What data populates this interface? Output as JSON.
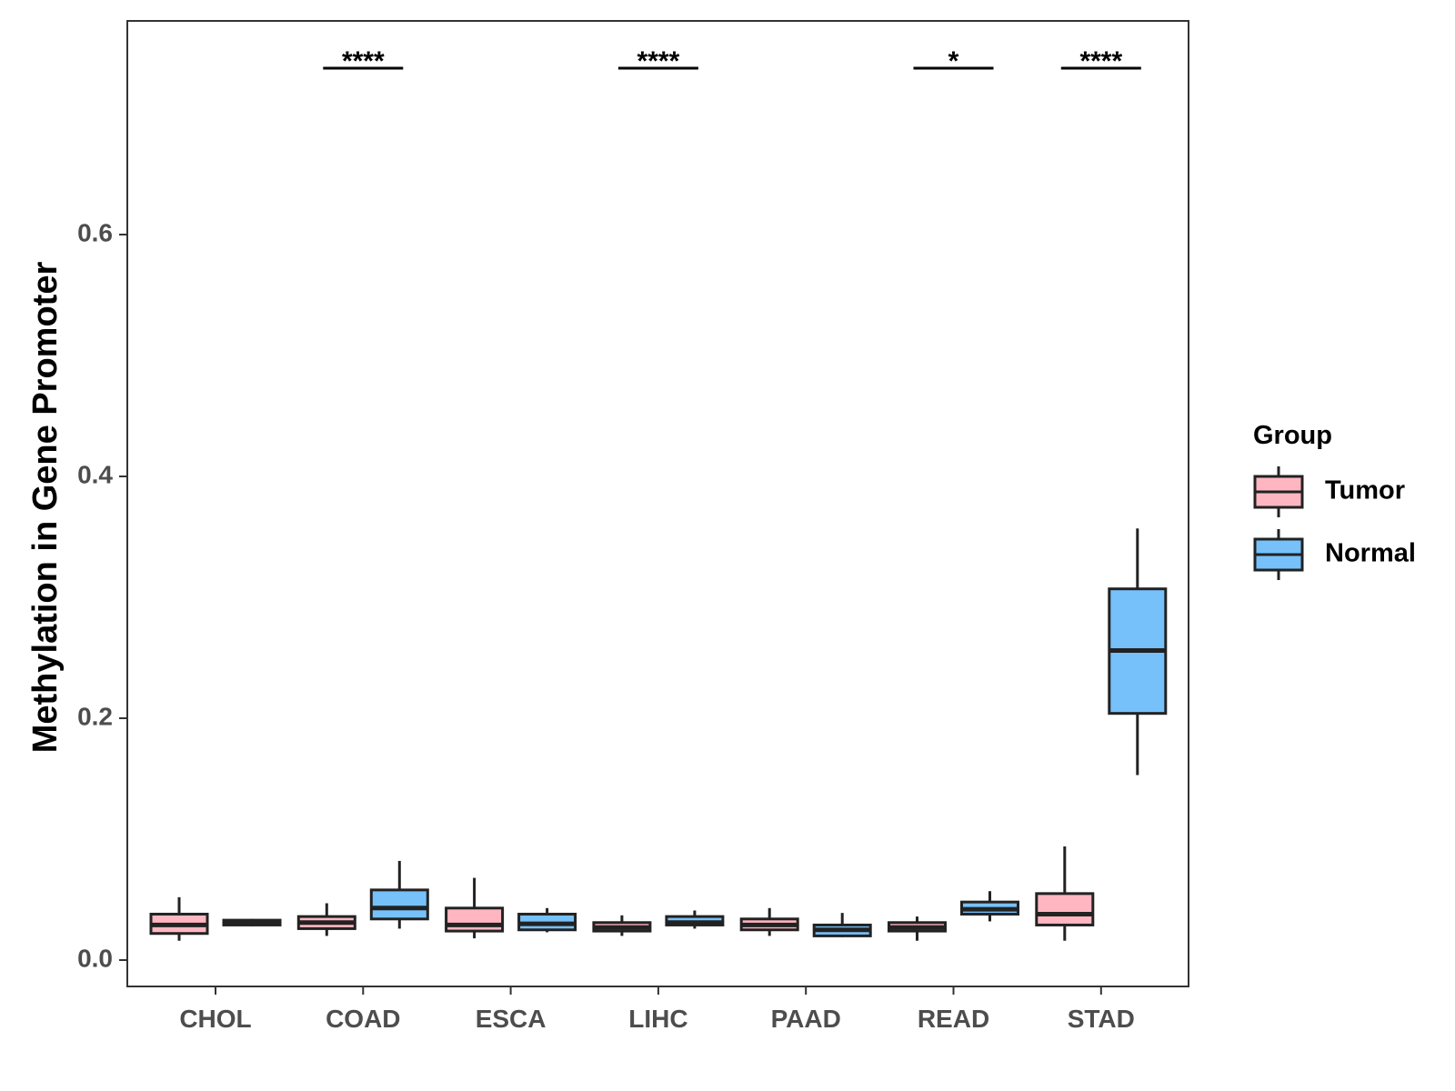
{
  "chart_data": {
    "type": "boxplot",
    "title": "",
    "xlabel": "",
    "ylabel": "Methylation in Gene Promoter",
    "ylim": [
      -0.02,
      0.78
    ],
    "yticks": [
      0.0,
      0.2,
      0.4,
      0.6
    ],
    "ytick_labels": [
      "0.0",
      "0.2",
      "0.4",
      "0.6"
    ],
    "categories": [
      "CHOL",
      "COAD",
      "ESCA",
      "LIHC",
      "PAAD",
      "READ",
      "STAD"
    ],
    "legend": {
      "title": "Group",
      "position": "right",
      "entries": [
        {
          "name": "Tumor",
          "color": "#FFB6C1"
        },
        {
          "name": "Normal",
          "color": "#76C1FA"
        }
      ]
    },
    "series": [
      {
        "name": "Tumor",
        "color": "#FFB6C1",
        "boxes": [
          {
            "category": "CHOL",
            "whisker_low": 0.016,
            "q1": 0.022,
            "median": 0.029,
            "q3": 0.038,
            "whisker_high": 0.052
          },
          {
            "category": "COAD",
            "whisker_low": 0.02,
            "q1": 0.026,
            "median": 0.031,
            "q3": 0.036,
            "whisker_high": 0.047
          },
          {
            "category": "ESCA",
            "whisker_low": 0.018,
            "q1": 0.024,
            "median": 0.029,
            "q3": 0.043,
            "whisker_high": 0.068
          },
          {
            "category": "LIHC",
            "whisker_low": 0.02,
            "q1": 0.024,
            "median": 0.027,
            "q3": 0.031,
            "whisker_high": 0.037
          },
          {
            "category": "PAAD",
            "whisker_low": 0.02,
            "q1": 0.025,
            "median": 0.029,
            "q3": 0.034,
            "whisker_high": 0.043
          },
          {
            "category": "READ",
            "whisker_low": 0.016,
            "q1": 0.024,
            "median": 0.027,
            "q3": 0.031,
            "whisker_high": 0.036
          },
          {
            "category": "STAD",
            "whisker_low": 0.016,
            "q1": 0.029,
            "median": 0.038,
            "q3": 0.055,
            "whisker_high": 0.094
          }
        ]
      },
      {
        "name": "Normal",
        "color": "#76C1FA",
        "boxes": [
          {
            "category": "CHOL",
            "whisker_low": 0.028,
            "q1": 0.029,
            "median": 0.031,
            "q3": 0.033,
            "whisker_high": 0.034
          },
          {
            "category": "COAD",
            "whisker_low": 0.026,
            "q1": 0.034,
            "median": 0.043,
            "q3": 0.058,
            "whisker_high": 0.082
          },
          {
            "category": "ESCA",
            "whisker_low": 0.023,
            "q1": 0.025,
            "median": 0.03,
            "q3": 0.038,
            "whisker_high": 0.043
          },
          {
            "category": "LIHC",
            "whisker_low": 0.026,
            "q1": 0.029,
            "median": 0.031,
            "q3": 0.036,
            "whisker_high": 0.041
          },
          {
            "category": "PAAD",
            "whisker_low": 0.019,
            "q1": 0.02,
            "median": 0.025,
            "q3": 0.029,
            "whisker_high": 0.039
          },
          {
            "category": "READ",
            "whisker_low": 0.032,
            "q1": 0.038,
            "median": 0.042,
            "q3": 0.048,
            "whisker_high": 0.057
          },
          {
            "category": "STAD",
            "whisker_low": 0.153,
            "q1": 0.204,
            "median": 0.256,
            "q3": 0.307,
            "whisker_high": 0.357
          }
        ]
      }
    ],
    "significance": [
      {
        "category": "COAD",
        "label": "****"
      },
      {
        "category": "LIHC",
        "label": "****"
      },
      {
        "category": "READ",
        "label": "*"
      },
      {
        "category": "STAD",
        "label": "****"
      }
    ]
  }
}
